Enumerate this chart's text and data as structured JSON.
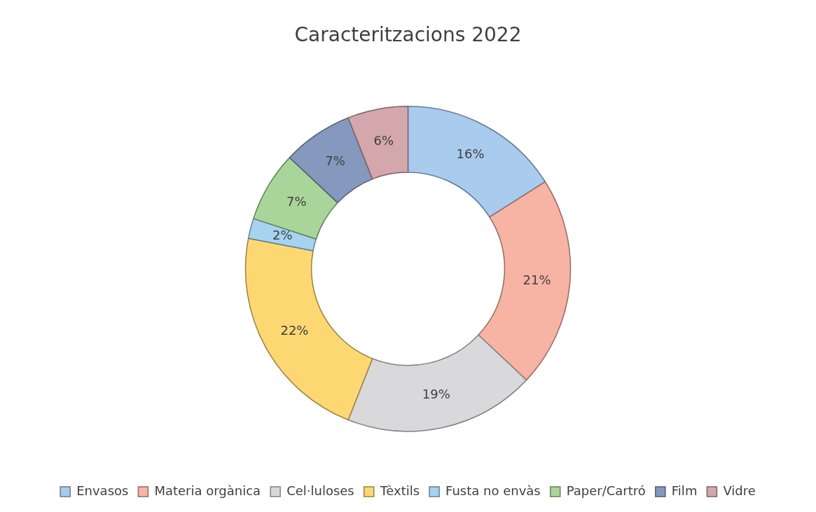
{
  "chart_data": {
    "type": "donut",
    "title": "Caracteritzacions 2022",
    "categories": [
      "Envasos",
      "Materia orgànica",
      "Cel·luloses",
      "Tèxtils",
      "Fusta no envàs",
      "Paper/Cartró",
      "Film",
      "Vidre"
    ],
    "values": [
      16,
      21,
      19,
      22,
      2,
      7,
      7,
      6
    ],
    "value_labels": [
      "16%",
      "21%",
      "19%",
      "22%",
      "2%",
      "7%",
      "7%",
      "6%"
    ],
    "colors": [
      "#a9cbee",
      "#f7b3a3",
      "#d9d9dc",
      "#fdd872",
      "#a6d3f0",
      "#a9d59a",
      "#8499bd",
      "#d3a7ab"
    ],
    "legend": "bottom"
  }
}
